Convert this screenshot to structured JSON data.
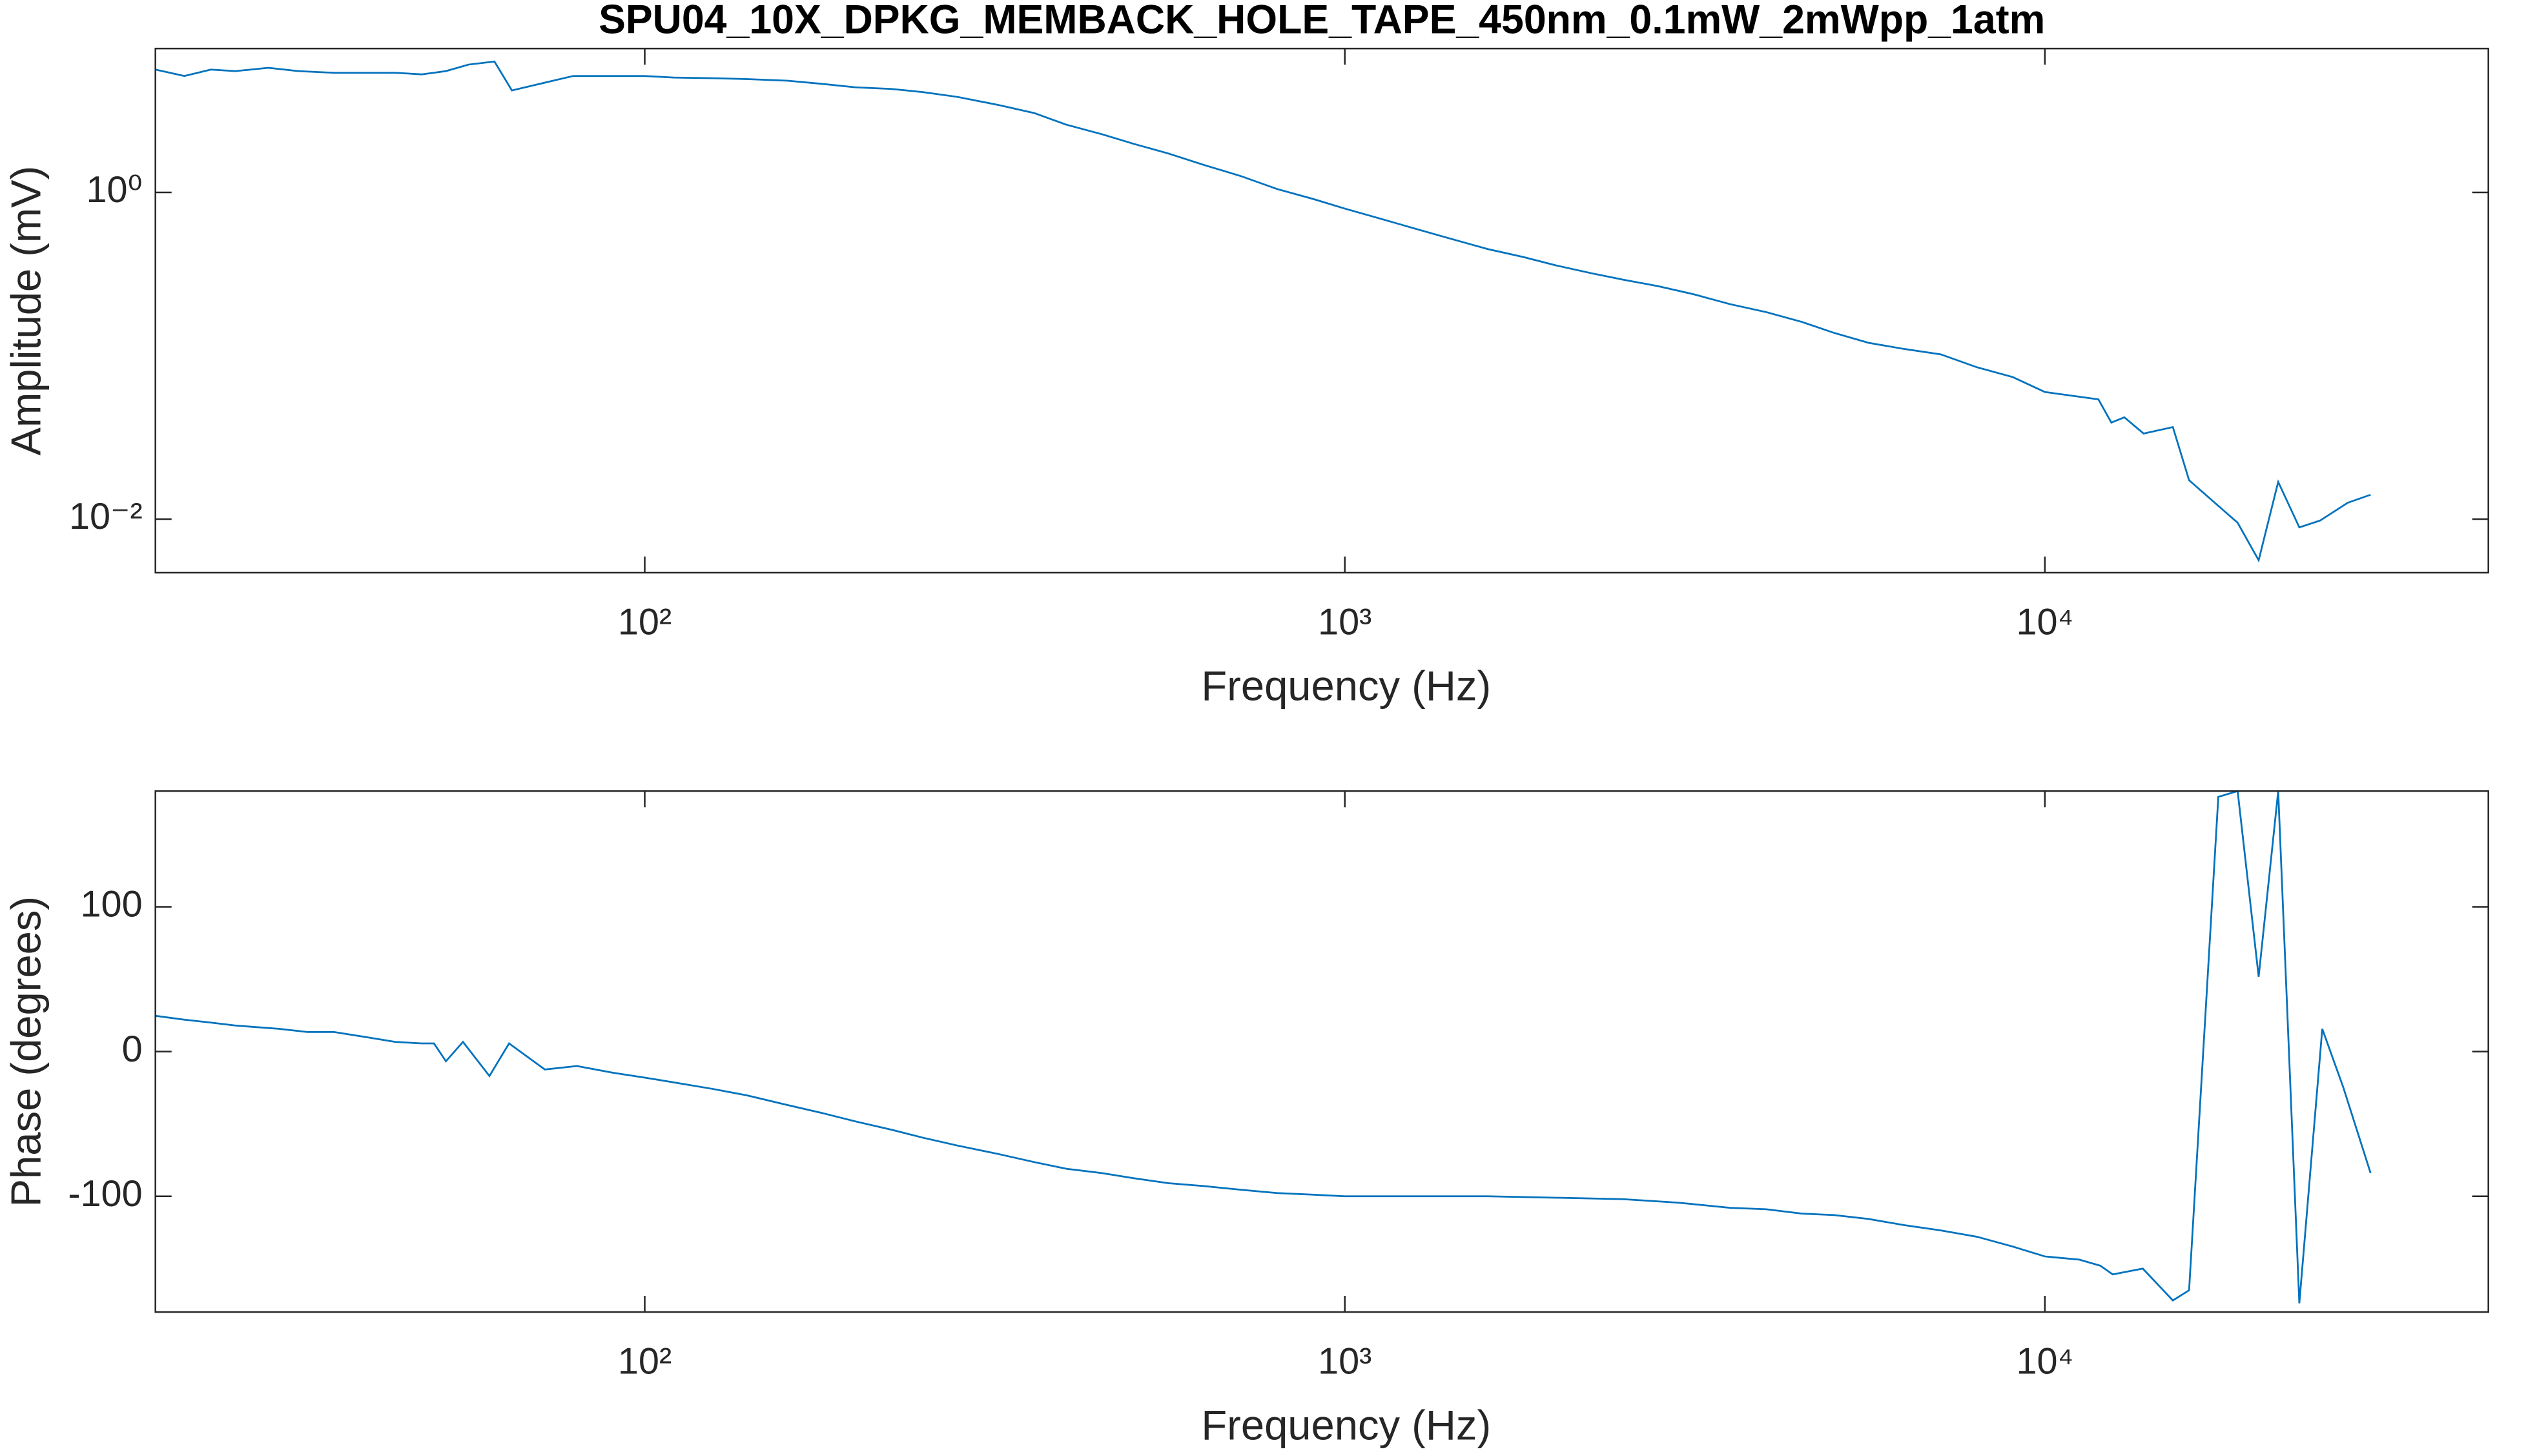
{
  "chart_data": [
    {
      "type": "line",
      "title": "SPU04_10X_DPKG_MEMBACK_HOLE_TAPE_450nm_0.1mW_2mWpp_1atm",
      "xlabel": "Frequency (Hz)",
      "ylabel": "Amplitude (mV)",
      "xlog": true,
      "ylog": true,
      "color": "#0072bd",
      "xlim": [
        20,
        43000
      ],
      "ylim": [
        0.0047,
        7.6
      ],
      "xticks": [
        {
          "value": 100,
          "label": "10²"
        },
        {
          "value": 1000,
          "label": "10³"
        },
        {
          "value": 10000,
          "label": "10⁴"
        }
      ],
      "yticks": [
        {
          "value": 0.01,
          "label": "10⁻²"
        },
        {
          "value": 1,
          "label": "10⁰"
        }
      ],
      "x": [
        20,
        22,
        24,
        26,
        29,
        32,
        36,
        40,
        44,
        48,
        52,
        56,
        61,
        64.6,
        72,
        79,
        90,
        100,
        110,
        125,
        140,
        160,
        180,
        200,
        225,
        250,
        280,
        320,
        360,
        400,
        450,
        500,
        560,
        630,
        710,
        800,
        900,
        1000,
        1120,
        1250,
        1400,
        1600,
        1800,
        2000,
        2250,
        2500,
        2800,
        3150,
        3550,
        4000,
        4500,
        5000,
        5600,
        6300,
        7100,
        8000,
        9000,
        10000,
        11925,
        12443,
        12985,
        13837,
        15234,
        16068,
        18850,
        20200,
        21540,
        23090,
        24720,
        27080,
        29190
      ],
      "values": [
        5.65,
        5.16,
        5.65,
        5.53,
        5.79,
        5.53,
        5.4,
        5.4,
        5.4,
        5.28,
        5.53,
        6.06,
        6.33,
        4.21,
        4.7,
        5.16,
        5.16,
        5.16,
        5.05,
        5.0,
        4.94,
        4.83,
        4.61,
        4.4,
        4.3,
        4.11,
        3.84,
        3.43,
        3.06,
        2.6,
        2.27,
        1.98,
        1.73,
        1.47,
        1.26,
        1.05,
        0.913,
        0.796,
        0.694,
        0.606,
        0.528,
        0.45,
        0.402,
        0.358,
        0.32,
        0.292,
        0.267,
        0.238,
        0.207,
        0.185,
        0.161,
        0.138,
        0.12,
        0.11,
        0.102,
        0.085,
        0.074,
        0.06,
        0.0541,
        0.039,
        0.042,
        0.0334,
        0.0366,
        0.0173,
        0.0095,
        0.0056,
        0.0169,
        0.0089,
        0.0098,
        0.0126,
        0.0141
      ]
    },
    {
      "type": "line",
      "xlabel": "Frequency (Hz)",
      "ylabel": "Phase (degrees)",
      "xlog": true,
      "ylog": false,
      "color": "#0072bd",
      "xlim": [
        20,
        43000
      ],
      "ylim": [
        -180,
        180
      ],
      "xticks": [
        {
          "value": 100,
          "label": "10²"
        },
        {
          "value": 1000,
          "label": "10³"
        },
        {
          "value": 10000,
          "label": "10⁴"
        }
      ],
      "yticks": [
        -100,
        0,
        100
      ],
      "x": [
        20,
        22,
        24,
        26,
        30,
        33,
        36,
        40,
        44,
        48,
        50,
        52,
        55,
        60,
        64,
        72,
        80,
        90,
        100,
        110,
        125,
        140,
        160,
        180,
        200,
        225,
        250,
        280,
        320,
        360,
        400,
        450,
        500,
        560,
        630,
        710,
        800,
        900,
        1000,
        1250,
        1600,
        2000,
        2500,
        3000,
        3550,
        4000,
        4500,
        5000,
        5600,
        6300,
        7100,
        8000,
        9000,
        10000,
        11200,
        12000,
        12500,
        13800,
        15234,
        16068,
        17690,
        18850,
        20200,
        21540,
        23090,
        24900,
        26680,
        29190
      ],
      "values": [
        24.7,
        22,
        20,
        18,
        15.7,
        13.5,
        13.5,
        10,
        6.7,
        5.6,
        5.6,
        -6.7,
        6.7,
        -16.9,
        5.6,
        -12.4,
        -10,
        -14.6,
        -18,
        -21.3,
        -25.8,
        -30.3,
        -37,
        -42.7,
        -48.3,
        -54,
        -59.6,
        -65,
        -70.8,
        -76.4,
        -81,
        -84,
        -87.6,
        -91,
        -93,
        -95.5,
        -97.8,
        -98.9,
        -100,
        -100,
        -100,
        -101,
        -102,
        -104.5,
        -108,
        -109,
        -112,
        -113,
        -115.7,
        -120,
        -123.6,
        -128,
        -134.8,
        -141.6,
        -143.8,
        -148,
        -154,
        -150,
        -172,
        -165,
        176,
        180,
        51.7,
        180,
        -174,
        15.7,
        -24.7,
        -84
      ]
    }
  ]
}
